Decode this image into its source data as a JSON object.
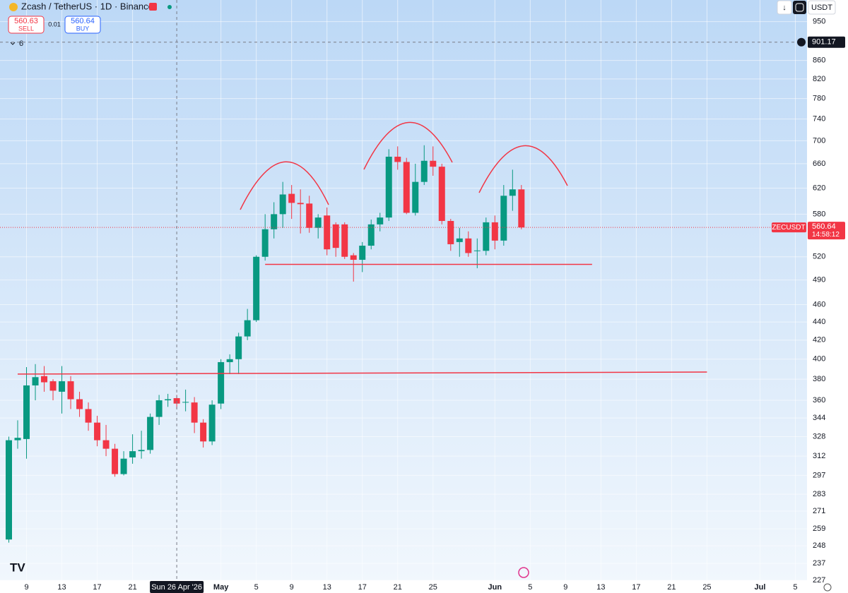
{
  "chart_data": {
    "type": "candlestick",
    "title": "Zcash / TetherUS · 1D · Binance",
    "x": [
      "2026-04-07",
      "2026-04-08",
      "2026-04-09",
      "2026-04-10",
      "2026-04-11",
      "2026-04-12",
      "2026-04-13",
      "2026-04-14",
      "2026-04-15",
      "2026-04-16",
      "2026-04-17",
      "2026-04-18",
      "2026-04-19",
      "2026-04-20",
      "2026-04-21",
      "2026-04-22",
      "2026-04-23",
      "2026-04-24",
      "2026-04-25",
      "2026-04-26",
      "2026-04-27",
      "2026-04-28",
      "2026-04-29",
      "2026-04-30",
      "2026-05-01",
      "2026-05-02",
      "2026-05-03",
      "2026-05-04",
      "2026-05-05",
      "2026-05-06",
      "2026-05-07",
      "2026-05-08",
      "2026-05-09",
      "2026-05-10",
      "2026-05-11",
      "2026-05-12",
      "2026-05-13",
      "2026-05-14",
      "2026-05-15",
      "2026-05-16",
      "2026-05-17",
      "2026-05-18",
      "2026-05-19",
      "2026-05-20",
      "2026-05-21",
      "2026-05-22",
      "2026-05-23",
      "2026-05-24",
      "2026-05-25",
      "2026-05-26",
      "2026-05-27",
      "2026-05-28",
      "2026-05-29",
      "2026-05-30",
      "2026-05-31",
      "2026-06-01",
      "2026-06-02",
      "2026-06-03",
      "2026-06-04"
    ],
    "open": [
      252,
      325,
      326,
      374,
      383,
      378,
      368,
      378,
      361,
      352,
      340,
      325,
      318,
      298,
      311,
      316,
      317,
      345,
      360,
      362,
      358,
      358,
      340,
      324,
      357,
      397,
      400,
      424,
      442,
      520,
      558,
      580,
      611,
      597,
      596,
      560,
      578,
      565,
      565,
      522,
      516,
      535,
      565,
      575,
      672,
      663,
      582,
      630,
      665,
      655,
      570,
      540,
      545,
      528,
      528,
      568,
      542,
      608,
      618
    ],
    "high": [
      328,
      342,
      392,
      395,
      393,
      380,
      393,
      383,
      368,
      358,
      346,
      338,
      322,
      316,
      330,
      333,
      348,
      365,
      366,
      365,
      370,
      363,
      343,
      360,
      400,
      405,
      428,
      455,
      522,
      580,
      598,
      630,
      625,
      618,
      608,
      580,
      590,
      568,
      568,
      525,
      540,
      572,
      582,
      685,
      690,
      670,
      660,
      692,
      690,
      660,
      573,
      560,
      555,
      545,
      575,
      578,
      625,
      650,
      625
    ],
    "low": [
      250,
      318,
      310,
      360,
      368,
      360,
      348,
      352,
      345,
      333,
      320,
      312,
      296,
      297,
      306,
      310,
      314,
      338,
      354,
      352,
      350,
      331,
      319,
      321,
      352,
      385,
      385,
      420,
      440,
      515,
      545,
      560,
      573,
      552,
      553,
      545,
      522,
      520,
      517,
      488,
      500,
      530,
      555,
      570,
      650,
      580,
      578,
      625,
      640,
      565,
      528,
      520,
      520,
      505,
      522,
      530,
      535,
      585,
      558
    ],
    "close": [
      325,
      327,
      374,
      382,
      377,
      369,
      378,
      361,
      352,
      340,
      325,
      318,
      298,
      310,
      316,
      317,
      345,
      360,
      361,
      357,
      358.5,
      340,
      324,
      356,
      397,
      400,
      424,
      442,
      520,
      558,
      580,
      610,
      597,
      595,
      560,
      575,
      530,
      532,
      520,
      516,
      535,
      565,
      575,
      672,
      663,
      582,
      630,
      665,
      655,
      570,
      537,
      545,
      525,
      528.5,
      568,
      542,
      608,
      618,
      560.64
    ],
    "up_color": "#089981",
    "down_color": "#f23645",
    "log_scale": true,
    "ylim": [
      227,
      1004
    ],
    "yticks": [
      950,
      860,
      820,
      780,
      740,
      700,
      660,
      620,
      580,
      520,
      490,
      460,
      440,
      420,
      400,
      380,
      360,
      344,
      328,
      312,
      297,
      283,
      271,
      259,
      248,
      237,
      227
    ],
    "xlim": [
      "2026-04-06",
      "2026-07-06"
    ],
    "xticks": [
      {
        "value": "2026-04-09",
        "label": "9"
      },
      {
        "value": "2026-04-13",
        "label": "13"
      },
      {
        "value": "2026-04-17",
        "label": "17"
      },
      {
        "value": "2026-04-21",
        "label": "21"
      },
      {
        "value": "2026-05-01",
        "label": "May"
      },
      {
        "value": "2026-05-05",
        "label": "5"
      },
      {
        "value": "2026-05-09",
        "label": "9"
      },
      {
        "value": "2026-05-13",
        "label": "13"
      },
      {
        "value": "2026-05-17",
        "label": "17"
      },
      {
        "value": "2026-05-21",
        "label": "21"
      },
      {
        "value": "2026-05-25",
        "label": "25"
      },
      {
        "value": "2026-06-01",
        "label": "Jun"
      },
      {
        "value": "2026-06-05",
        "label": "5"
      },
      {
        "value": "2026-06-09",
        "label": "9"
      },
      {
        "value": "2026-06-13",
        "label": "13"
      },
      {
        "value": "2026-06-17",
        "label": "17"
      },
      {
        "value": "2026-06-21",
        "label": "21"
      },
      {
        "value": "2026-06-25",
        "label": "25"
      },
      {
        "value": "2026-07-01",
        "label": "Jul"
      },
      {
        "value": "2026-07-05",
        "label": "5"
      }
    ],
    "grid": true,
    "trendlines": [
      {
        "x": [
          "2026-04-08",
          "2026-06-25"
        ],
        "y": [
          385,
          387
        ],
        "color": "#f23645"
      },
      {
        "x": [
          "2026-05-06",
          "2026-06-12"
        ],
        "y": [
          510,
          510
        ],
        "color": "#f23645"
      }
    ],
    "crosshair": {
      "x": {
        "value": "2026-04-26",
        "label": "Sun 26 Apr '26"
      },
      "y": 901.17
    },
    "last_price": {
      "value": 560.64,
      "symbol": "ZECUSDT",
      "countdown": "14:58:12"
    }
  },
  "ui": {
    "sell_price": "560.63",
    "sell": "SELL",
    "spread": "0.01",
    "buy_price": "560.64",
    "buy": "BUY",
    "collapsed_count": "6",
    "currency": "USDT"
  }
}
